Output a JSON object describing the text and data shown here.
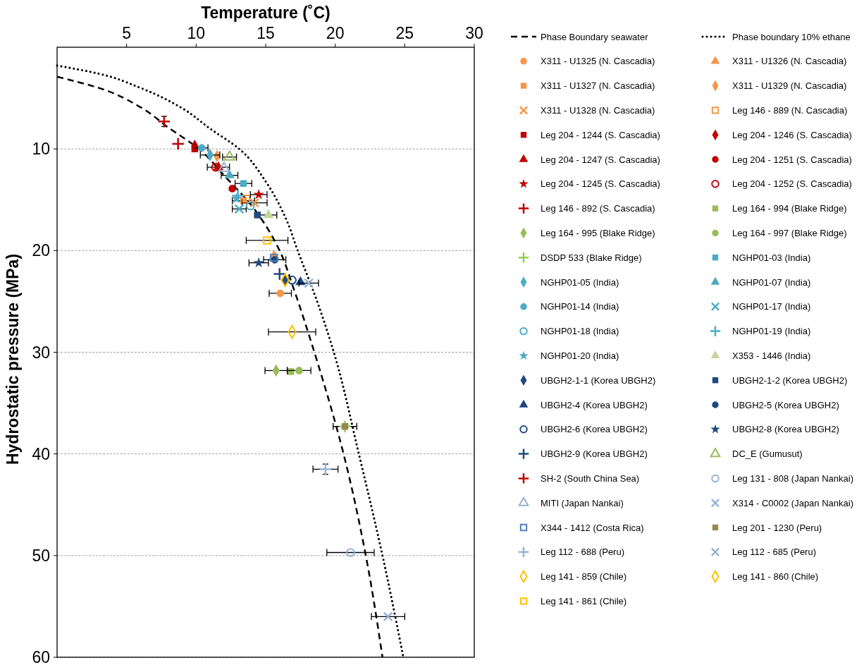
{
  "chart_data": {
    "type": "scatter",
    "xlabel": "Temperature (˚C)",
    "ylabel": "Hydrostatic pressure (MPa)",
    "xlim": [
      0,
      30
    ],
    "ylim": [
      60,
      0
    ],
    "xticks": [
      5,
      10,
      15,
      20,
      25,
      30
    ],
    "yticks": [
      10,
      20,
      30,
      40,
      50,
      60
    ],
    "grid": "y",
    "legend": "right",
    "series": [
      {
        "name": "Phase Boundary seawater",
        "type": "line",
        "line_style": "dashed",
        "marker": "none",
        "color": "#000000",
        "x": [
          0,
          3,
          6,
          8,
          10.2,
          12,
          14,
          16,
          17,
          18.5,
          20.6,
          22.2,
          23.4
        ],
        "values": [
          2.9,
          4.0,
          5.9,
          7.9,
          10,
          12.6,
          15.6,
          20,
          23.7,
          30,
          40,
          50,
          60
        ]
      },
      {
        "name": "Phase boundary 10% ethane",
        "type": "line",
        "line_style": "dotted",
        "marker": "none",
        "color": "#000000",
        "x": [
          0,
          3,
          6,
          9,
          11,
          13.1,
          15,
          16.5,
          17.3,
          18.7,
          19.9,
          21.7,
          23.4,
          24.9
        ],
        "values": [
          1.8,
          2.6,
          4.0,
          6.0,
          8.0,
          10,
          13.2,
          17,
          20,
          25,
          30,
          40,
          50,
          60
        ]
      },
      {
        "name": "X311 - U1325 (N. Cascadia)",
        "color": "#f79646",
        "marker": "circle",
        "x": [
          16.05
        ],
        "values": [
          24.2
        ],
        "xerrors": [
          0.8
        ]
      },
      {
        "name": "X311 - U1326 (N. Cascadia)",
        "color": "#f79646",
        "marker": "triangle",
        "x": [
          15.6
        ],
        "values": [
          20.5
        ]
      },
      {
        "name": "X311 - U1327 (N. Cascadia)",
        "color": "#f79646",
        "marker": "square",
        "x": [
          13.4
        ],
        "values": [
          15.1
        ],
        "xerrors": [
          0.8
        ]
      },
      {
        "name": "X311 - U1329 (N. Cascadia)",
        "color": "#f79646",
        "marker": "diamond",
        "x": [
          11.5
        ],
        "values": [
          10.7
        ]
      },
      {
        "name": "X311 - U1328 (N. Cascadia)",
        "color": "#f79646",
        "marker": "x",
        "x": [
          14.2
        ],
        "values": [
          15.3
        ],
        "xerrors": [
          0.9
        ]
      },
      {
        "name": "Leg 146 - 889 (N. Cascadia)",
        "color": "#f79646",
        "marker": "square-open",
        "x": [
          13.6
        ],
        "values": [
          14.9
        ]
      },
      {
        "name": "Leg 204 - 1244 (S. Cascadia)",
        "color": "#c00000",
        "marker": "square",
        "x": [
          9.9
        ],
        "values": [
          10.0
        ]
      },
      {
        "name": "Leg 204 - 1246 (S. Cascadia)",
        "color": "#c00000",
        "marker": "diamond",
        "x": [
          9.9
        ],
        "values": [
          9.7
        ]
      },
      {
        "name": "Leg 204 - 1247 (S. Cascadia)",
        "color": "#c00000",
        "marker": "triangle",
        "x": [
          11.6
        ],
        "values": [
          11.8
        ],
        "xerrors": [
          0.8
        ]
      },
      {
        "name": "Leg 204 - 1251 (S. Cascadia)",
        "color": "#c00000",
        "marker": "circle",
        "x": [
          12.6
        ],
        "values": [
          13.9
        ]
      },
      {
        "name": "Leg 204 - 1245 (S. Cascadia)",
        "color": "#c00000",
        "marker": "star",
        "x": [
          14.5
        ],
        "values": [
          14.5
        ],
        "xerrors": [
          0.6
        ]
      },
      {
        "name": "Leg 204 - 1252 (S. Cascadia)",
        "color": "#c00000",
        "marker": "circle-open",
        "x": [
          11.4
        ],
        "values": [
          11.8
        ]
      },
      {
        "name": "Leg 146 - 892 (S. Cascadia)",
        "color": "#c00000",
        "marker": "cross",
        "x": [
          8.7
        ],
        "values": [
          9.5
        ]
      },
      {
        "name": "Leg 164 - 994 (Blake Ridge)",
        "color": "#9bbb59",
        "marker": "square",
        "x": [
          16.8
        ],
        "values": [
          31.9
        ]
      },
      {
        "name": "Leg 164 - 995 (Blake Ridge)",
        "color": "#9bbb59",
        "marker": "diamond",
        "x": [
          15.75
        ],
        "values": [
          31.8
        ],
        "xerrors": [
          0.8
        ]
      },
      {
        "name": "Leg 164 - 997 (Blake Ridge)",
        "color": "#9bbb59",
        "marker": "circle",
        "x": [
          17.4
        ],
        "values": [
          31.8
        ],
        "xerrors": [
          0.85
        ]
      },
      {
        "name": "DSDP 533 (Blake Ridge)",
        "color": "#92d050",
        "marker": "cross",
        "x": [
          20.7
        ],
        "values": [
          37.3
        ],
        "xerrors": [
          0.85
        ]
      },
      {
        "name": "NGHP01-03 (India)",
        "color": "#4bacc6",
        "marker": "square",
        "x": [
          13.4
        ],
        "values": [
          13.4
        ],
        "xerrors": [
          0.6
        ]
      },
      {
        "name": "NGHP01-05 (India)",
        "color": "#4bacc6",
        "marker": "diamond",
        "x": [
          11.0
        ],
        "values": [
          10.6
        ],
        "xerrors": [
          0.7
        ]
      },
      {
        "name": "NGHP01-07 (India)",
        "color": "#4bacc6",
        "marker": "triangle",
        "x": [
          12.4
        ],
        "values": [
          12.6
        ],
        "xerrors": [
          0.6
        ]
      },
      {
        "name": "NGHP01-14 (India)",
        "color": "#4bacc6",
        "marker": "circle",
        "x": [
          10.4
        ],
        "values": [
          9.9
        ],
        "xerrors": [
          0.45
        ]
      },
      {
        "name": "NGHP01-17 (India)",
        "color": "#4bacc6",
        "marker": "x",
        "x": [
          13.1
        ],
        "values": [
          15.9
        ],
        "xerrors": [
          0.5
        ]
      },
      {
        "name": "NGHP01-18 (India)",
        "color": "#4bacc6",
        "marker": "circle-open",
        "x": [
          13.9
        ],
        "values": [
          15.6
        ]
      },
      {
        "name": "NGHP01-19 (India)",
        "color": "#4bacc6",
        "marker": "cross",
        "x": [
          13.0
        ],
        "values": [
          14.6
        ]
      },
      {
        "name": "NGHP01-20 (India)",
        "color": "#4bacc6",
        "marker": "star",
        "x": [
          12.9
        ],
        "values": [
          14.9
        ]
      },
      {
        "name": "X353 - 1446 (India)",
        "color": "#c3d69b",
        "marker": "triangle",
        "x": [
          15.2
        ],
        "values": [
          16.5
        ],
        "xerrors": [
          0.6
        ]
      },
      {
        "name": "UBGH2-1-1 (Korea UBGH2)",
        "color": "#1f497d",
        "marker": "diamond",
        "x": [
          16.4
        ],
        "values": [
          22.9
        ]
      },
      {
        "name": "UBGH2-1-2 (Korea UBGH2)",
        "color": "#1f497d",
        "marker": "square",
        "x": [
          14.4
        ],
        "values": [
          16.5
        ]
      },
      {
        "name": "UBGH2-4 (Korea UBGH2)",
        "color": "#1f497d",
        "marker": "triangle",
        "x": [
          17.5
        ],
        "values": [
          23.1
        ]
      },
      {
        "name": "UBGH2-5 (Korea UBGH2)",
        "color": "#1f497d",
        "marker": "circle",
        "x": [
          15.65
        ],
        "values": [
          20.9
        ],
        "xerrors": [
          0.8
        ]
      },
      {
        "name": "UBGH2-6 (Korea UBGH2)",
        "color": "#1f497d",
        "marker": "circle-open",
        "x": [
          16.9
        ],
        "values": [
          22.9
        ]
      },
      {
        "name": "UBGH2-8 (Korea UBGH2)",
        "color": "#1f497d",
        "marker": "star",
        "x": [
          14.5
        ],
        "values": [
          21.2
        ],
        "xerrors": [
          0.7
        ]
      },
      {
        "name": "UBGH2-9 (Korea UBGH2)",
        "color": "#1f497d",
        "marker": "cross",
        "x": [
          16.0
        ],
        "values": [
          22.3
        ]
      },
      {
        "name": "DC_E (Gumusut)",
        "color": "#9bbb59",
        "marker": "triangle-open",
        "x": [
          12.4
        ],
        "values": [
          10.8
        ],
        "xerrors": [
          0.5
        ]
      },
      {
        "name": "SH-2 (South China Sea)",
        "color": "#c00000",
        "marker": "cross",
        "x": [
          7.7
        ],
        "values": [
          7.3
        ],
        "errors": [
          0.5
        ]
      },
      {
        "name": "Leg 131 - 808 (Japan Nankai)",
        "color": "#95b3d7",
        "marker": "circle-open",
        "x": [
          21.1
        ],
        "values": [
          49.7
        ],
        "xerrors": [
          1.7
        ]
      },
      {
        "name": "MITI (Japan Nankai)",
        "color": "#95b3d7",
        "marker": "triangle-open",
        "x": [
          12.0
        ],
        "values": [
          11.9
        ]
      },
      {
        "name": "X314 - C0002 (Japan Nankai)",
        "color": "#95b3d7",
        "marker": "x",
        "x": [
          18.1
        ],
        "values": [
          23.2
        ],
        "xerrors": [
          0.7
        ]
      },
      {
        "name": "X344 - 1412 (Costa Rica)",
        "color": "#4f81bd",
        "marker": "square-open",
        "x": [
          15.6
        ],
        "values": [
          20.7
        ]
      },
      {
        "name": "Leg 201 - 1230 (Peru)",
        "color": "#948a54",
        "marker": "square",
        "x": [
          20.7
        ],
        "values": [
          37.3
        ]
      },
      {
        "name": "Leg 112 - 688 (Peru)",
        "color": "#95b3d7",
        "marker": "cross",
        "x": [
          19.3
        ],
        "values": [
          41.5
        ],
        "xerrors": [
          0.9
        ],
        "errors": [
          0.5
        ]
      },
      {
        "name": "Leg 112 - 685 (Peru)",
        "color": "#95b3d7",
        "marker": "x",
        "x": [
          23.8
        ],
        "values": [
          56.0
        ],
        "xerrors": [
          1.2
        ]
      },
      {
        "name": "Leg 141 - 859 (Chile)",
        "color": "#ffc000",
        "marker": "diamond-open",
        "x": [
          16.9
        ],
        "values": [
          28.0
        ],
        "xerrors": [
          1.7
        ]
      },
      {
        "name": "Leg 141 - 860 (Chile)",
        "color": "#ffc000",
        "marker": "diamond-open",
        "x": [
          16.4
        ],
        "values": [
          22.9
        ]
      },
      {
        "name": "Leg 141 - 861 (Chile)",
        "color": "#ffc000",
        "marker": "square-open",
        "x": [
          15.1
        ],
        "values": [
          19.0
        ],
        "xerrors": [
          1.5
        ]
      }
    ]
  }
}
